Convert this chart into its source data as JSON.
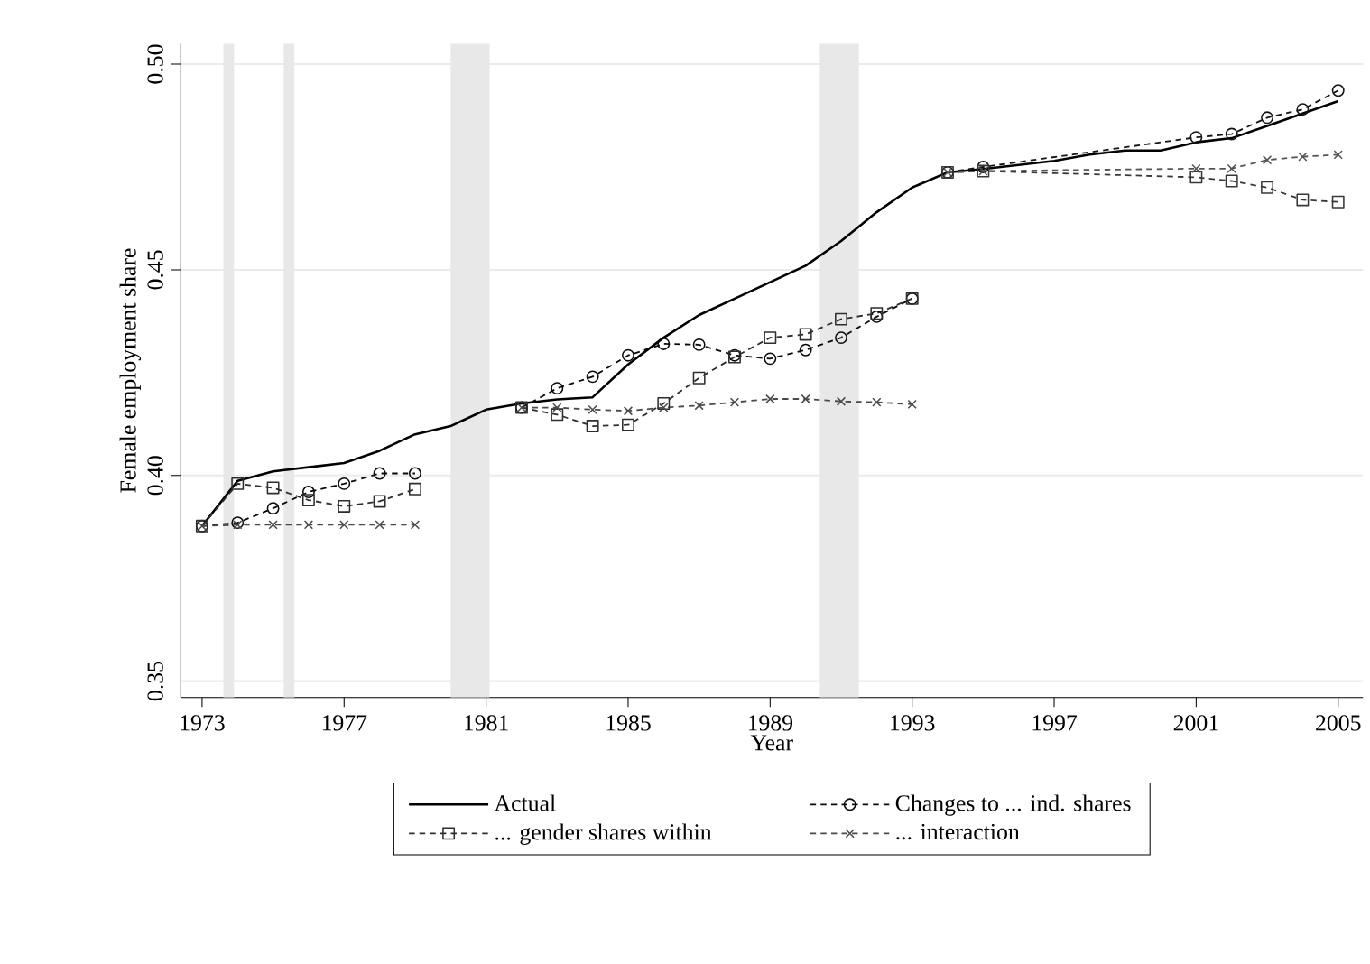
{
  "chart_data": {
    "type": "line",
    "xlabel": "Year",
    "ylabel": "Female employment share",
    "xlim": [
      1972.4,
      2005.7
    ],
    "ylim": [
      0.346,
      0.505
    ],
    "xticks": [
      1973,
      1977,
      1981,
      1985,
      1989,
      1993,
      1997,
      2001,
      2005
    ],
    "yticks": [
      {
        "value": 0.35,
        "label": "0.35"
      },
      {
        "value": 0.4,
        "label": "0.40"
      },
      {
        "value": 0.45,
        "label": "0.45"
      },
      {
        "value": 0.5,
        "label": "0.50"
      }
    ],
    "grid": "y",
    "legend": "bottom",
    "bands": [
      {
        "axis": "x",
        "from": 1973.6,
        "to": 1973.9,
        "color": "#e8e8e8"
      },
      {
        "axis": "x",
        "from": 1975.3,
        "to": 1975.6,
        "color": "#e8e8e8"
      },
      {
        "axis": "x",
        "from": 1980.0,
        "to": 1981.1,
        "color": "#e8e8e8"
      },
      {
        "axis": "x",
        "from": 1990.4,
        "to": 1991.5,
        "color": "#e8e8e8"
      }
    ],
    "series": [
      {
        "name": "Actual",
        "color": "#000000",
        "marker": "none",
        "line_style": "solid",
        "x": [
          1973,
          1974,
          1975,
          1976,
          1977,
          1978,
          1979,
          1980,
          1981,
          1982,
          1983,
          1984,
          1985,
          1986,
          1987,
          1988,
          1989,
          1990,
          1991,
          1992,
          1993,
          1994,
          1995,
          1996,
          1997,
          1998,
          1999,
          2000,
          2001,
          2002,
          2003,
          2004,
          2005
        ],
        "values": [
          0.3877,
          0.3987,
          0.401,
          0.402,
          0.403,
          0.406,
          0.41,
          0.412,
          0.416,
          0.4175,
          0.4185,
          0.419,
          0.427,
          0.4335,
          0.439,
          0.443,
          0.447,
          0.451,
          0.457,
          0.464,
          0.47,
          0.4737,
          0.4745,
          0.4755,
          0.4765,
          0.478,
          0.479,
          0.479,
          0.481,
          0.482,
          0.485,
          0.488,
          0.491
        ]
      },
      {
        "name": "Changes to ... ind. shares",
        "color": "#0a0a0a",
        "marker": "circle",
        "line_style": "dashed",
        "x": [
          1973,
          1974,
          1975,
          1976,
          1977,
          1978,
          1979,
          1980,
          1982,
          1983,
          1984,
          1985,
          1986,
          1987,
          1988,
          1989,
          1990,
          1991,
          1992,
          1993
        ],
        "values": [
          0.3877,
          0.3885,
          0.392,
          0.396,
          0.398,
          0.4005,
          0.4005,
          null,
          0.4165,
          0.4212,
          0.424,
          0.4292,
          0.432,
          0.4318,
          0.4292,
          0.4284,
          0.4305,
          0.4335,
          0.4386,
          0.443
        ]
      },
      {
        "color": "#141414",
        "marker": "circle",
        "line_style": "dashed",
        "x": [
          1994,
          1995,
          2001,
          2002,
          2003,
          2004,
          2005
        ],
        "values": [
          0.4737,
          0.475,
          0.4822,
          0.483,
          0.487,
          0.489,
          0.4936
        ]
      },
      {
        "name": "... gender shares within",
        "color": "#2e2e2e",
        "marker": "square",
        "line_style": "dashed",
        "x": [
          1973,
          1974,
          1975,
          1976,
          1977,
          1978,
          1979,
          1980,
          1982,
          1983,
          1984,
          1985,
          1986,
          1987,
          1988,
          1989,
          1990,
          1991,
          1992,
          1993
        ],
        "values": [
          0.3877,
          0.398,
          0.397,
          0.394,
          0.3925,
          0.3937,
          0.3967,
          null,
          0.4165,
          0.4148,
          0.412,
          0.4123,
          0.4175,
          0.4237,
          0.4288,
          0.4335,
          0.4343,
          0.438,
          0.4394,
          0.443
        ]
      },
      {
        "color": "#383838",
        "marker": "square",
        "line_style": "dashed",
        "x": [
          1994,
          1995,
          2001,
          2002,
          2003,
          2004,
          2005
        ],
        "values": [
          0.4737,
          0.474,
          0.4725,
          0.4716,
          0.47,
          0.467,
          0.4665
        ]
      },
      {
        "name": "... interaction",
        "color": "#4a4a4a",
        "marker": "cross",
        "line_style": "dashed",
        "x": [
          1973,
          1974,
          1975,
          1976,
          1977,
          1978,
          1979,
          1980,
          1982,
          1983,
          1984,
          1985,
          1986,
          1987,
          1988,
          1989,
          1990,
          1991,
          1992,
          1993
        ],
        "values": [
          0.3877,
          0.388,
          0.388,
          0.388,
          0.388,
          0.388,
          0.388,
          null,
          0.4165,
          0.4165,
          0.416,
          0.4157,
          0.4165,
          0.417,
          0.4178,
          0.4186,
          0.4186,
          0.418,
          0.4178,
          0.4173
        ]
      },
      {
        "color": "#545454",
        "marker": "cross",
        "line_style": "dashed",
        "x": [
          1994,
          1995,
          2001,
          2002,
          2003,
          2004,
          2005
        ],
        "values": [
          0.4737,
          0.474,
          0.4746,
          0.4746,
          0.4767,
          0.4775,
          0.478
        ]
      }
    ]
  }
}
